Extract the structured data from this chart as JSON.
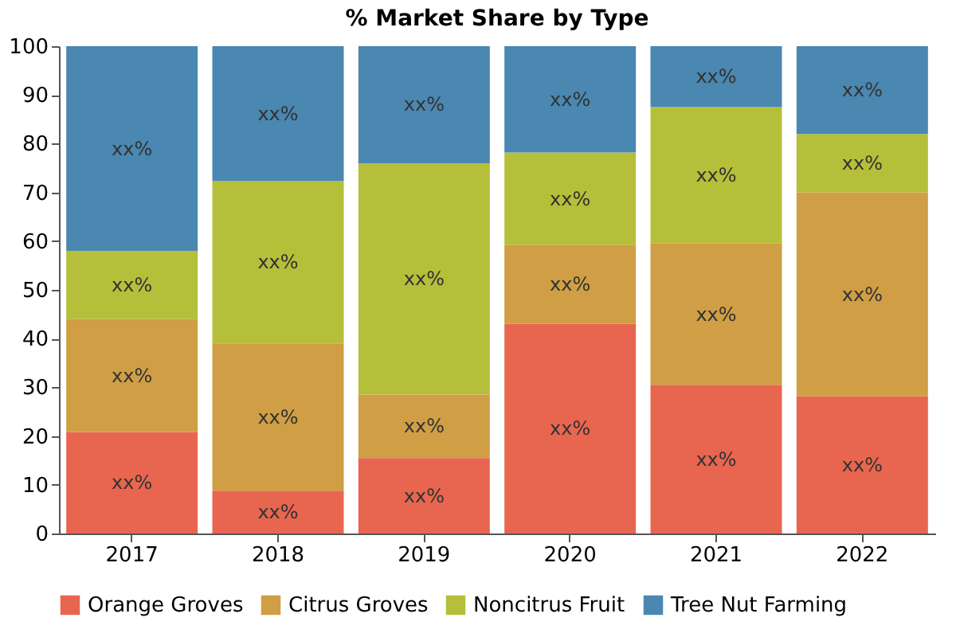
{
  "chart_data": {
    "type": "bar",
    "title": "% Market Share by Type",
    "stacked": true,
    "categories": [
      "2017",
      "2018",
      "2019",
      "2020",
      "2021",
      "2022"
    ],
    "series": [
      {
        "name": "Orange Groves",
        "color": "#e8664f",
        "values": [
          20.8,
          8.8,
          15.5,
          43,
          30.5,
          28.2
        ],
        "value_labels": [
          "xx%",
          "xx%",
          "xx%",
          "xx%",
          "xx%",
          "xx%"
        ]
      },
      {
        "name": "Citrus Groves",
        "color": "#cf9e45",
        "values": [
          23.2,
          30.2,
          13,
          16.2,
          29,
          41.8
        ],
        "value_labels": [
          "xx%",
          "xx%",
          "xx%",
          "xx%",
          "xx%",
          "xx%"
        ]
      },
      {
        "name": "Noncitrus Fruit",
        "color": "#b5bf3a",
        "values": [
          14,
          33.3,
          47.5,
          19,
          28,
          12
        ],
        "value_labels": [
          "xx%",
          "xx%",
          "xx%",
          "xx%",
          "xx%",
          "xx%"
        ]
      },
      {
        "name": "Tree Nut Farming",
        "color": "#4a87b1",
        "values": [
          42,
          27.7,
          24,
          21.8,
          12.5,
          18
        ],
        "value_labels": [
          "xx%",
          "xx%",
          "xx%",
          "xx%",
          "xx%",
          "xx%"
        ]
      }
    ],
    "ylim": [
      0,
      100
    ],
    "yticks": [
      0,
      10,
      20,
      30,
      40,
      50,
      60,
      70,
      80,
      90,
      100
    ],
    "grid": false,
    "legend": "bottom"
  }
}
